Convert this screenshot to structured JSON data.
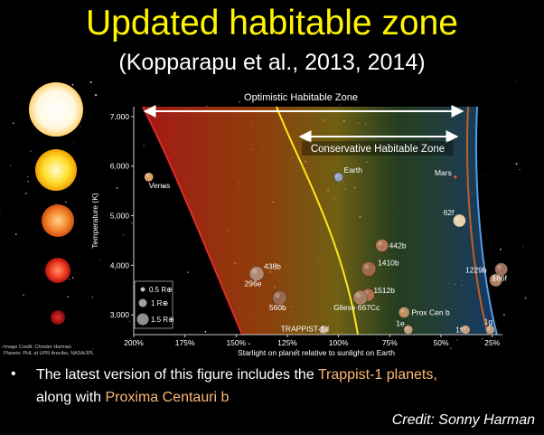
{
  "header": {
    "title": "Updated habitable zone",
    "subtitle": "(Kopparapu et al., 2013, 2014)"
  },
  "chart_data": {
    "type": "scatter",
    "xlabel": "Starlight on planet relative to sunlight on Earth",
    "ylabel": "Temperature (K)",
    "x_reversed": true,
    "xlim": [
      2.0,
      0.2
    ],
    "ylim": [
      2600,
      7200
    ],
    "x_ticks": [
      {
        "v": 2.0,
        "label": "200%"
      },
      {
        "v": 1.75,
        "label": "175%"
      },
      {
        "v": 1.5,
        "label": "150%"
      },
      {
        "v": 1.25,
        "label": "125%"
      },
      {
        "v": 1.0,
        "label": "100%"
      },
      {
        "v": 0.75,
        "label": "75%"
      },
      {
        "v": 0.5,
        "label": "50%"
      },
      {
        "v": 0.25,
        "label": "25%"
      }
    ],
    "y_ticks": [
      {
        "v": 3000,
        "label": "3,000"
      },
      {
        "v": 4000,
        "label": "4,000"
      },
      {
        "v": 5000,
        "label": "5,000"
      },
      {
        "v": 6000,
        "label": "6,000"
      },
      {
        "v": 7000,
        "label": "7,000"
      }
    ],
    "zones": {
      "optimistic_label": "Optimistic Habitable Zone",
      "conservative_label": "Conservative Habitable Zone"
    },
    "planets": [
      {
        "name": "Venus",
        "x": 1.9,
        "y": 5780,
        "size": 5,
        "color": "#d9a06a"
      },
      {
        "name": "Earth",
        "x": 1.0,
        "y": 5780,
        "size": 5,
        "color": "#8fa3c2"
      },
      {
        "name": "Mars",
        "x": 0.43,
        "y": 5780,
        "size": 2,
        "color": "#c85a30"
      },
      {
        "name": "62f",
        "x": 0.41,
        "y": 4900,
        "size": 7,
        "color": "#e8d0b0"
      },
      {
        "name": "442b",
        "x": 0.7,
        "y": 4400,
        "size": 7,
        "color": "#b07858"
      },
      {
        "name": "1410b",
        "x": 0.8,
        "y": 4000,
        "size": 8,
        "color": "#a06a48"
      },
      {
        "name": "438b",
        "x": 1.4,
        "y": 3830,
        "size": 8,
        "color": "#b08a70"
      },
      {
        "name": "296e",
        "x": 1.4,
        "y": 3830,
        "size": 0,
        "color": "#b08a70"
      },
      {
        "name": "1512b",
        "x": 0.9,
        "y": 3400,
        "size": 7,
        "color": "#b07050"
      },
      {
        "name": "560b",
        "x": 1.2,
        "y": 3400,
        "size": 8,
        "color": "#9a6850"
      },
      {
        "name": "Gliese 667Cc",
        "x": 0.92,
        "y": 3350,
        "size": 8,
        "color": "#a88060"
      },
      {
        "name": "1229b",
        "x": 0.25,
        "y": 3700,
        "size": 7,
        "color": "#b08060"
      },
      {
        "name": "186f",
        "x": 0.25,
        "y": 3700,
        "size": 7,
        "color": "#a07060"
      },
      {
        "name": "Prox Cen b",
        "x": 0.68,
        "y": 3050,
        "size": 6,
        "color": "#c09060"
      },
      {
        "name": "TRAPPIST-1d",
        "x": 1.1,
        "y": 2700,
        "size": 5,
        "color": "#c0a080"
      },
      {
        "name": "1e",
        "x": 0.66,
        "y": 2700,
        "size": 5,
        "color": "#c0a080"
      },
      {
        "name": "1f",
        "x": 0.38,
        "y": 2700,
        "size": 5,
        "color": "#c0a080"
      },
      {
        "name": "1g",
        "x": 0.26,
        "y": 2700,
        "size": 5,
        "color": "#c0a080"
      }
    ],
    "size_legend": [
      "0.5 R⊕",
      "1 R⊕",
      "1.5 R⊕"
    ],
    "image_credit": [
      "Image Credit: Chester Harman",
      "Planets: PHL at UPR Arecibo, NASA/JPL"
    ]
  },
  "colors": {
    "title": "#fff500",
    "highlight": "#ffb874"
  },
  "bullet": {
    "line1_pre": "The latest version of this figure includes the ",
    "line1_hl": "Trappist-1 planets,",
    "line2_pre": "along with ",
    "line2_hl": "Proxima Centauri b"
  },
  "credit": "Credit: Sonny Harman"
}
